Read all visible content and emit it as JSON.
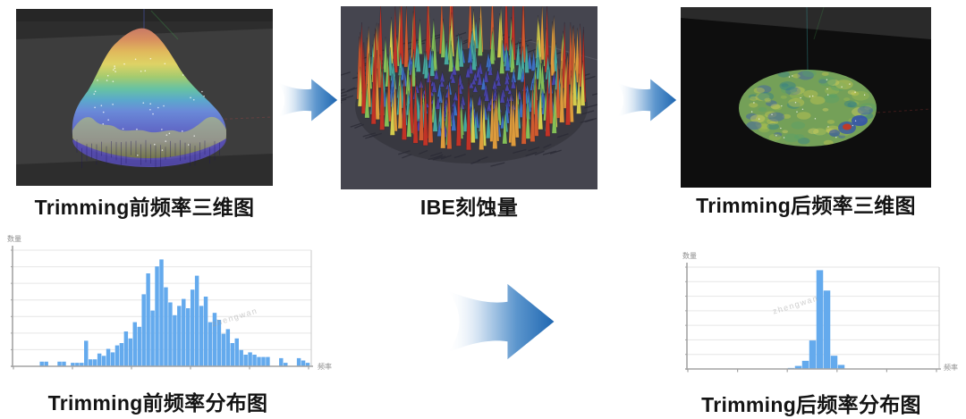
{
  "top_panels": [
    {
      "caption": "Trimming前频率三维图"
    },
    {
      "caption": "IBE刻蚀量"
    },
    {
      "caption": "Trimming后频率三维图"
    }
  ],
  "decor": {
    "arrow_gradient": {
      "tail": "#ffffff",
      "mid": "#8db9e2",
      "head": "#1f67b1"
    },
    "panel_backgrounds": {
      "before": "#2d2d2d",
      "etch": "#45454f",
      "after": "#0e0e0e"
    }
  },
  "chart_data": [
    {
      "type": "bar",
      "title": "Trimming前频率分布图",
      "xlabel": "频率",
      "ylabel": "数量",
      "watermark": "zhengwan",
      "bar_color": "#64aaed",
      "grid": true,
      "legend_position": "none",
      "note": "axes have no numeric tick labels; values are bar heights as percent of plot height",
      "ylim": [
        0,
        100
      ],
      "values": [
        0,
        0,
        0,
        0,
        0,
        0,
        4,
        4,
        0,
        0,
        4,
        4,
        0,
        3,
        3,
        3,
        22,
        6,
        6,
        11,
        9,
        15,
        12,
        18,
        20,
        30,
        24,
        38,
        34,
        62,
        80,
        48,
        86,
        92,
        68,
        55,
        44,
        52,
        58,
        50,
        66,
        78,
        52,
        60,
        38,
        46,
        40,
        28,
        32,
        20,
        24,
        14,
        10,
        12,
        10,
        8,
        8,
        8,
        0,
        0,
        7,
        3,
        0,
        0,
        7,
        5,
        3
      ]
    },
    {
      "type": "bar",
      "title": "Trimming后频率分布图",
      "xlabel": "频率",
      "ylabel": "数量",
      "watermark": "zhengwan",
      "bar_color": "#64aaed",
      "grid": true,
      "legend_position": "none",
      "note": "axes have no numeric tick labels; values are bar heights as percent of plot height",
      "ylim": [
        0,
        100
      ],
      "values": [
        0,
        0,
        0,
        0,
        0,
        0,
        0,
        0,
        0,
        0,
        0,
        0,
        0,
        0,
        1,
        3,
        8,
        28,
        97,
        77,
        13,
        4,
        0,
        0,
        0,
        0,
        0,
        0,
        0,
        0,
        0,
        0,
        0,
        0,
        0
      ]
    }
  ]
}
